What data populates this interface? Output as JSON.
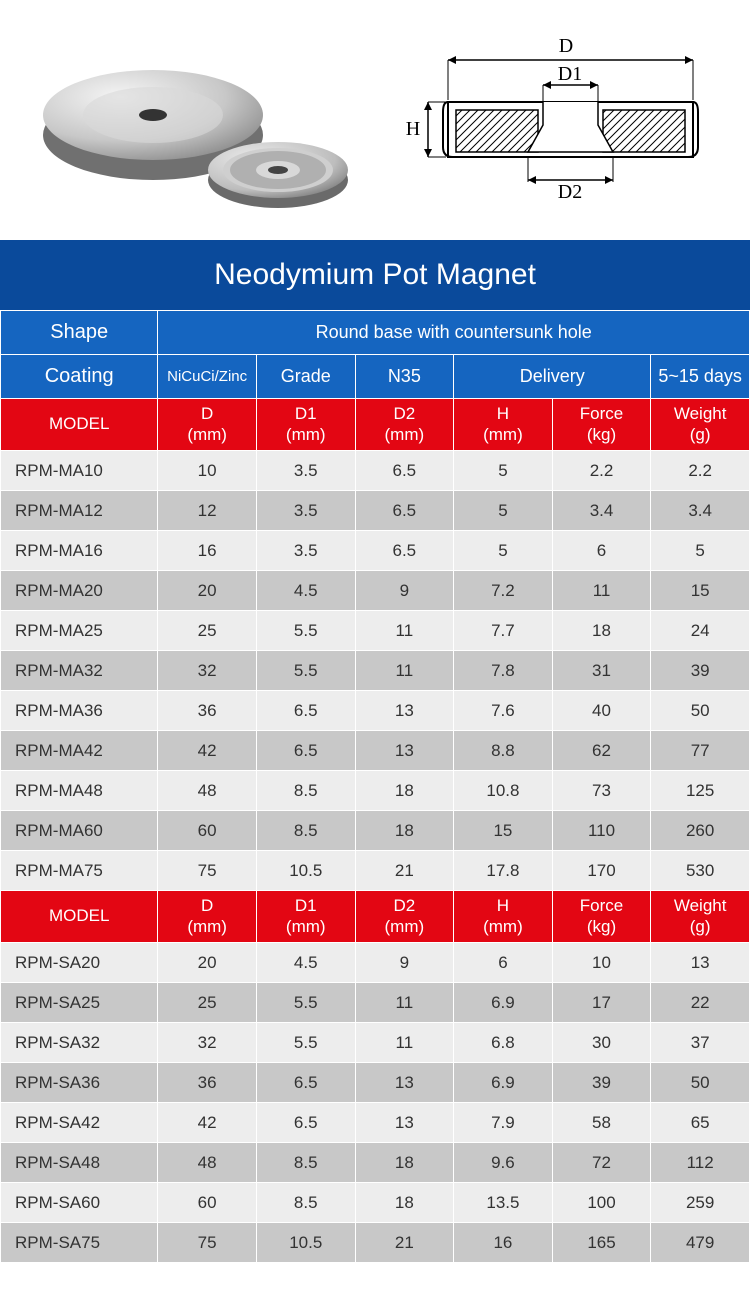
{
  "title": "Neodymium Pot Magnet",
  "colors": {
    "title_bg": "#0a4a9b",
    "blue_bg": "#1565c0",
    "red_bg": "#e30613",
    "row_odd": "#ededed",
    "row_even": "#c8c8c8",
    "text_white": "#ffffff",
    "text_dark": "#333333",
    "border": "#ffffff"
  },
  "info_rows": [
    {
      "label": "Shape",
      "value": "Round base with countersunk hole"
    },
    {
      "label": "Coating",
      "pairs": [
        {
          "k": "NiCuCi/Zinc",
          "v": null
        },
        {
          "k": "Grade",
          "v": "N35"
        },
        {
          "k": "Delivery",
          "v": "5~15 days"
        }
      ]
    }
  ],
  "column_headers": [
    "MODEL",
    "D\n(mm)",
    "D1\n(mm)",
    "D2\n(mm)",
    "H\n(mm)",
    "Force\n(kg)",
    "Weight\n(g)"
  ],
  "section1": [
    [
      "RPM-MA10",
      "10",
      "3.5",
      "6.5",
      "5",
      "2.2",
      "2.2"
    ],
    [
      "RPM-MA12",
      "12",
      "3.5",
      "6.5",
      "5",
      "3.4",
      "3.4"
    ],
    [
      "RPM-MA16",
      "16",
      "3.5",
      "6.5",
      "5",
      "6",
      "5"
    ],
    [
      "RPM-MA20",
      "20",
      "4.5",
      "9",
      "7.2",
      "11",
      "15"
    ],
    [
      "RPM-MA25",
      "25",
      "5.5",
      "11",
      "7.7",
      "18",
      "24"
    ],
    [
      "RPM-MA32",
      "32",
      "5.5",
      "11",
      "7.8",
      "31",
      "39"
    ],
    [
      "RPM-MA36",
      "36",
      "6.5",
      "13",
      "7.6",
      "40",
      "50"
    ],
    [
      "RPM-MA42",
      "42",
      "6.5",
      "13",
      "8.8",
      "62",
      "77"
    ],
    [
      "RPM-MA48",
      "48",
      "8.5",
      "18",
      "10.8",
      "73",
      "125"
    ],
    [
      "RPM-MA60",
      "60",
      "8.5",
      "18",
      "15",
      "110",
      "260"
    ],
    [
      "RPM-MA75",
      "75",
      "10.5",
      "21",
      "17.8",
      "170",
      "530"
    ]
  ],
  "section2": [
    [
      "RPM-SA20",
      "20",
      "4.5",
      "9",
      "6",
      "10",
      "13"
    ],
    [
      "RPM-SA25",
      "25",
      "5.5",
      "11",
      "6.9",
      "17",
      "22"
    ],
    [
      "RPM-SA32",
      "32",
      "5.5",
      "11",
      "6.8",
      "30",
      "37"
    ],
    [
      "RPM-SA36",
      "36",
      "6.5",
      "13",
      "6.9",
      "39",
      "50"
    ],
    [
      "RPM-SA42",
      "42",
      "6.5",
      "13",
      "7.9",
      "58",
      "65"
    ],
    [
      "RPM-SA48",
      "48",
      "8.5",
      "18",
      "9.6",
      "72",
      "112"
    ],
    [
      "RPM-SA60",
      "60",
      "8.5",
      "18",
      "13.5",
      "100",
      "259"
    ],
    [
      "RPM-SA75",
      "75",
      "10.5",
      "21",
      "16",
      "165",
      "479"
    ]
  ],
  "diagram_labels": {
    "D": "D",
    "D1": "D1",
    "D2": "D2",
    "H": "H"
  }
}
